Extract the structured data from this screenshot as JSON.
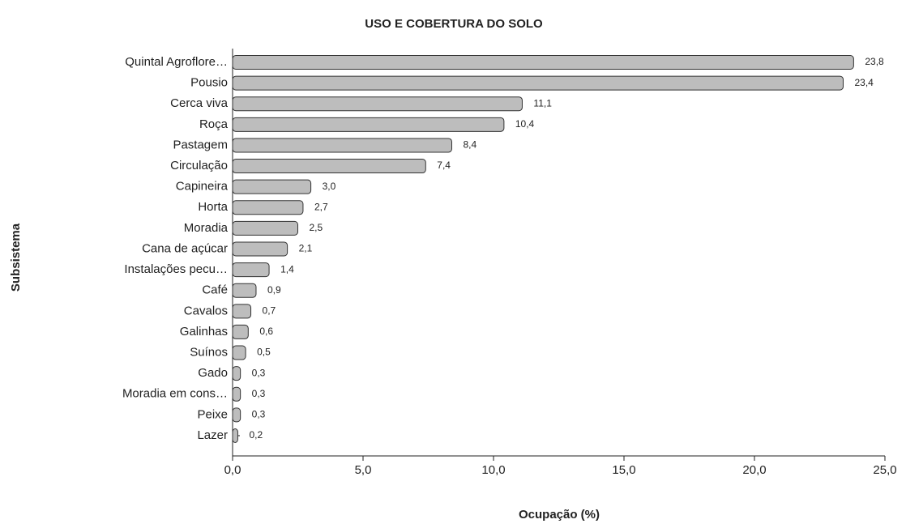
{
  "chart_data": {
    "type": "bar",
    "orientation": "horizontal",
    "title": "USO E COBERTURA DO SOLO",
    "xlabel": "Ocupação (%)",
    "ylabel": "Subsistema",
    "categories": [
      "Quintal Agroflore…",
      "Pousio",
      "Cerca viva",
      "Roça",
      "Pastagem",
      "Circulação",
      "Capineira",
      "Horta",
      "Moradia",
      "Cana de açúcar",
      "Instalações pecu…",
      "Café",
      "Cavalos",
      "Galinhas",
      "Suínos",
      "Gado",
      "Moradia em cons…",
      "Peixe",
      "Lazer"
    ],
    "values": [
      23.8,
      23.4,
      11.1,
      10.4,
      8.4,
      7.4,
      3.0,
      2.7,
      2.5,
      2.1,
      1.4,
      0.9,
      0.7,
      0.6,
      0.5,
      0.3,
      0.3,
      0.3,
      0.2
    ],
    "value_labels": [
      "23,8",
      "23,4",
      "11,1",
      "10,4",
      "8,4",
      "7,4",
      "3,0",
      "2,7",
      "2,5",
      "2,1",
      "1,4",
      "0,9",
      "0,7",
      "0,6",
      "0,5",
      "0,3",
      "0,3",
      "0,3",
      "0,2"
    ],
    "color": "#bdbdbd",
    "xlim": [
      0,
      25
    ],
    "xticks": [
      {
        "value": 0,
        "label": "0,0"
      },
      {
        "value": 5,
        "label": "5,0"
      },
      {
        "value": 10,
        "label": "10,0"
      },
      {
        "value": 15,
        "label": "15,0"
      },
      {
        "value": 20,
        "label": "20,0"
      },
      {
        "value": 25,
        "label": "25,0"
      }
    ]
  }
}
